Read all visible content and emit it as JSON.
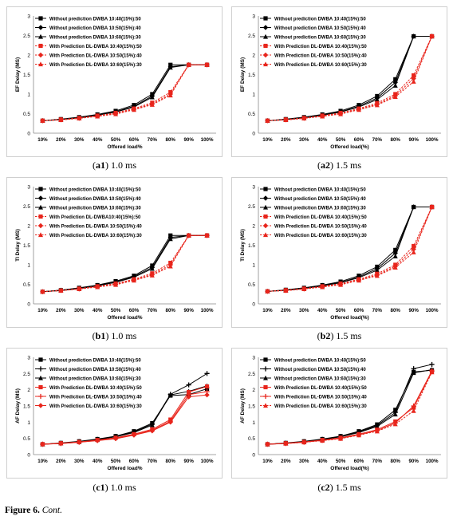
{
  "figure": {
    "label": "Figure 6.",
    "note": "Cont."
  },
  "panels": [
    {
      "id": "a1",
      "letter": "a1",
      "subtitle": "1.0 ms"
    },
    {
      "id": "a2",
      "letter": "a2",
      "subtitle": "1.5 ms"
    },
    {
      "id": "b1",
      "letter": "b1",
      "subtitle": "1.0 ms"
    },
    {
      "id": "b2",
      "letter": "b2",
      "subtitle": "1.5 ms"
    },
    {
      "id": "c1",
      "letter": "c1",
      "subtitle": "1.0 ms"
    },
    {
      "id": "c2",
      "letter": "c2",
      "subtitle": "1.5 ms"
    }
  ],
  "chart_data": [
    {
      "id": "a1",
      "type": "line",
      "xlabel": "Offered load%",
      "ylabel": "EF Delay (MS)",
      "categories": [
        "10%",
        "20%",
        "30%",
        "40%",
        "50%",
        "60%",
        "70%",
        "80%",
        "90%",
        "100%"
      ],
      "ylim": [
        0,
        3
      ],
      "yticks": [
        0,
        0.5,
        1,
        1.5,
        2,
        2.5,
        3
      ],
      "legend_position": "top-left",
      "series": [
        {
          "name": "Without prediction DWBA 10:40(15%):50",
          "color": "#000000",
          "marker": "square",
          "dash": false,
          "values": [
            0.32,
            0.36,
            0.41,
            0.48,
            0.57,
            0.72,
            1.0,
            1.75,
            1.75,
            1.75
          ]
        },
        {
          "name": "Without prediction DWBA 10:50(15%):40",
          "color": "#000000",
          "marker": "diamond",
          "dash": false,
          "values": [
            0.32,
            0.35,
            0.4,
            0.47,
            0.55,
            0.69,
            0.95,
            1.7,
            1.75,
            1.75
          ]
        },
        {
          "name": "Without prediction DWBA 10:60(15%):30",
          "color": "#000000",
          "marker": "triangle",
          "dash": false,
          "values": [
            0.32,
            0.35,
            0.39,
            0.46,
            0.54,
            0.67,
            0.92,
            1.68,
            1.75,
            1.75
          ]
        },
        {
          "name": "With Prediction DL-DWBA 10:40(15%):50",
          "color": "#e8251c",
          "marker": "square",
          "dash": true,
          "values": [
            0.32,
            0.35,
            0.39,
            0.45,
            0.52,
            0.63,
            0.78,
            1.05,
            1.75,
            1.75
          ]
        },
        {
          "name": "With Prediction DL-DWBA 10:50(15%):40",
          "color": "#e8251c",
          "marker": "diamond",
          "dash": true,
          "values": [
            0.32,
            0.34,
            0.38,
            0.44,
            0.5,
            0.61,
            0.75,
            1.0,
            1.75,
            1.75
          ]
        },
        {
          "name": "With Prediction DL-DWBA 10:60(15%):30",
          "color": "#e8251c",
          "marker": "triangle",
          "dash": true,
          "values": [
            0.32,
            0.34,
            0.38,
            0.43,
            0.49,
            0.6,
            0.73,
            0.97,
            1.75,
            1.75
          ]
        }
      ]
    },
    {
      "id": "a2",
      "type": "line",
      "xlabel": "Offered load(%)",
      "ylabel": "EF Delay (MS)",
      "categories": [
        "10%",
        "20%",
        "30%",
        "40%",
        "50%",
        "60%",
        "70%",
        "80%",
        "90%",
        "100%"
      ],
      "ylim": [
        0,
        3
      ],
      "yticks": [
        0,
        0.5,
        1,
        1.5,
        2,
        2.5,
        3
      ],
      "legend_position": "top-left",
      "series": [
        {
          "name": "Without prediction DWBA 10:40(15%):50",
          "color": "#000000",
          "marker": "square",
          "dash": false,
          "values": [
            0.32,
            0.36,
            0.41,
            0.48,
            0.57,
            0.72,
            0.95,
            1.38,
            2.48,
            2.48
          ]
        },
        {
          "name": "Without prediction DWBA 10:50(15%):40",
          "color": "#000000",
          "marker": "diamond",
          "dash": false,
          "values": [
            0.32,
            0.35,
            0.4,
            0.47,
            0.55,
            0.69,
            0.9,
            1.3,
            2.48,
            2.48
          ]
        },
        {
          "name": "Without prediction DWBA 10:60(15%):30",
          "color": "#000000",
          "marker": "triangle",
          "dash": false,
          "values": [
            0.32,
            0.35,
            0.39,
            0.46,
            0.54,
            0.67,
            0.86,
            1.22,
            2.48,
            2.48
          ]
        },
        {
          "name": "With Prediction DL-DWBA 10:40(15%):50",
          "color": "#e8251c",
          "marker": "square",
          "dash": true,
          "values": [
            0.32,
            0.35,
            0.39,
            0.45,
            0.52,
            0.63,
            0.77,
            1.0,
            1.48,
            2.48
          ]
        },
        {
          "name": "With Prediction DL-DWBA 10:50(15%):40",
          "color": "#e8251c",
          "marker": "diamond",
          "dash": true,
          "values": [
            0.32,
            0.34,
            0.38,
            0.44,
            0.5,
            0.61,
            0.74,
            0.96,
            1.4,
            2.48
          ]
        },
        {
          "name": "With Prediction DL-DWBA 10:60(15%):30",
          "color": "#e8251c",
          "marker": "triangle",
          "dash": true,
          "values": [
            0.32,
            0.34,
            0.38,
            0.43,
            0.49,
            0.6,
            0.72,
            0.93,
            1.32,
            2.48
          ]
        }
      ]
    },
    {
      "id": "b1",
      "type": "line",
      "xlabel": "Offered load%",
      "ylabel": "TI Delay (MS)",
      "categories": [
        "10%",
        "20%",
        "30%",
        "40%",
        "50%",
        "60%",
        "70%",
        "80%",
        "90%",
        "100%"
      ],
      "ylim": [
        0,
        3
      ],
      "yticks": [
        0,
        0.5,
        1,
        1.5,
        2,
        2.5,
        3
      ],
      "legend_position": "top-left",
      "series": [
        {
          "name": "Without prediction DWBA 10:40(15%):50",
          "color": "#000000",
          "marker": "square",
          "dash": false,
          "values": [
            0.31,
            0.35,
            0.41,
            0.48,
            0.58,
            0.72,
            0.98,
            1.75,
            1.75,
            1.75
          ]
        },
        {
          "name": "Without prediction DWBA 10:50(15%):40",
          "color": "#000000",
          "marker": "diamond",
          "dash": false,
          "values": [
            0.31,
            0.35,
            0.4,
            0.47,
            0.56,
            0.7,
            0.93,
            1.7,
            1.75,
            1.75
          ]
        },
        {
          "name": "Without prediction DWBA 10:60(15%):30",
          "color": "#000000",
          "marker": "triangle",
          "dash": false,
          "values": [
            0.31,
            0.34,
            0.39,
            0.46,
            0.55,
            0.68,
            0.9,
            1.66,
            1.75,
            1.75
          ]
        },
        {
          "name": "With Prediction DL-DWBA10:40(15%):50",
          "color": "#e8251c",
          "marker": "square",
          "dash": true,
          "values": [
            0.31,
            0.34,
            0.39,
            0.45,
            0.52,
            0.63,
            0.78,
            1.05,
            1.75,
            1.75
          ]
        },
        {
          "name": "With Prediction DL-DWBA 10:50(15%):40",
          "color": "#e8251c",
          "marker": "diamond",
          "dash": true,
          "values": [
            0.31,
            0.34,
            0.38,
            0.44,
            0.5,
            0.61,
            0.75,
            1.0,
            1.75,
            1.75
          ]
        },
        {
          "name": "With Prediction DL-DWBA 10:60(15%):30",
          "color": "#e8251c",
          "marker": "triangle",
          "dash": true,
          "values": [
            0.31,
            0.34,
            0.38,
            0.43,
            0.49,
            0.6,
            0.73,
            0.96,
            1.75,
            1.75
          ]
        }
      ]
    },
    {
      "id": "b2",
      "type": "line",
      "xlabel": "Offered load(%)",
      "ylabel": "TI Delay (MS)",
      "categories": [
        "10%",
        "20%",
        "30%",
        "40%",
        "50%",
        "60%",
        "70%",
        "80%",
        "90%",
        "100%"
      ],
      "ylim": [
        0,
        3
      ],
      "yticks": [
        0,
        0.5,
        1,
        1.5,
        2,
        2.5,
        3
      ],
      "legend_position": "top-left",
      "series": [
        {
          "name": "Without prediction DWBA 10:40(15%):50",
          "color": "#000000",
          "marker": "square",
          "dash": false,
          "values": [
            0.32,
            0.36,
            0.41,
            0.48,
            0.57,
            0.72,
            0.95,
            1.38,
            2.48,
            2.48
          ]
        },
        {
          "name": "Without prediction DWBA 10:50(15%):40",
          "color": "#000000",
          "marker": "diamond",
          "dash": false,
          "values": [
            0.32,
            0.35,
            0.4,
            0.47,
            0.55,
            0.69,
            0.9,
            1.3,
            2.48,
            2.48
          ]
        },
        {
          "name": "Without prediction DWBA 10:60(15%):30",
          "color": "#000000",
          "marker": "triangle",
          "dash": false,
          "values": [
            0.32,
            0.35,
            0.39,
            0.46,
            0.54,
            0.67,
            0.86,
            1.22,
            2.48,
            2.48
          ]
        },
        {
          "name": "With Prediction DL-DWBA 10:40(15%):50",
          "color": "#e8251c",
          "marker": "square",
          "dash": true,
          "values": [
            0.32,
            0.35,
            0.39,
            0.45,
            0.52,
            0.63,
            0.77,
            1.0,
            1.48,
            2.48
          ]
        },
        {
          "name": "With Prediction DL-DWBA 10:50(15%):40",
          "color": "#e8251c",
          "marker": "diamond",
          "dash": true,
          "values": [
            0.32,
            0.34,
            0.38,
            0.44,
            0.5,
            0.61,
            0.74,
            0.96,
            1.4,
            2.48
          ]
        },
        {
          "name": "With Prediction DL-DWBA 10:60(15%):30",
          "color": "#e8251c",
          "marker": "triangle",
          "dash": true,
          "values": [
            0.32,
            0.34,
            0.38,
            0.43,
            0.49,
            0.6,
            0.72,
            0.93,
            1.32,
            2.48
          ]
        }
      ]
    },
    {
      "id": "c1",
      "type": "line",
      "xlabel": "Offered load%",
      "ylabel": "AF Delay (MS)",
      "categories": [
        "10%",
        "20%",
        "30%",
        "40%",
        "50%",
        "60%",
        "70%",
        "80%",
        "90%",
        "100%"
      ],
      "ylim": [
        0,
        3
      ],
      "yticks": [
        0,
        0.5,
        1,
        1.5,
        2,
        2.5,
        3
      ],
      "legend_position": "top-left",
      "series": [
        {
          "name": "Without prediction DWBA 10:40(15%):50",
          "color": "#000000",
          "marker": "square",
          "dash": false,
          "values": [
            0.32,
            0.36,
            0.41,
            0.48,
            0.57,
            0.72,
            0.97,
            1.82,
            1.85,
            2.03
          ]
        },
        {
          "name": "Without prediction DWBA 10:50(15%):40",
          "color": "#000000",
          "marker": "plus",
          "dash": false,
          "values": [
            0.32,
            0.35,
            0.4,
            0.47,
            0.56,
            0.7,
            0.94,
            1.86,
            2.15,
            2.5
          ]
        },
        {
          "name": "Without prediction DWBA 10:60(15%):30",
          "color": "#000000",
          "marker": "triangle",
          "dash": false,
          "values": [
            0.32,
            0.35,
            0.39,
            0.46,
            0.55,
            0.68,
            0.91,
            1.84,
            1.95,
            2.12
          ]
        },
        {
          "name": "With Prediction DL-DWBA 10:40(15%):50",
          "color": "#e8251c",
          "marker": "square",
          "dash": false,
          "values": [
            0.32,
            0.35,
            0.39,
            0.45,
            0.52,
            0.63,
            0.78,
            1.08,
            1.93,
            2.1
          ]
        },
        {
          "name": "With Prediction DL-DWBA 10:50(15%):40",
          "color": "#e8251c",
          "marker": "plus",
          "dash": false,
          "values": [
            0.32,
            0.34,
            0.38,
            0.44,
            0.5,
            0.61,
            0.75,
            1.03,
            1.85,
            1.94
          ]
        },
        {
          "name": "With Prediction DL-DWBA 10:60(15%):30",
          "color": "#e8251c",
          "marker": "diamond",
          "dash": false,
          "values": [
            0.32,
            0.34,
            0.38,
            0.43,
            0.49,
            0.6,
            0.73,
            1.0,
            1.78,
            1.84
          ]
        }
      ]
    },
    {
      "id": "c2",
      "type": "line",
      "xlabel": "Offered load(%)",
      "ylabel": "AF Delay (MS)",
      "categories": [
        "10%",
        "20%",
        "30%",
        "40%",
        "50%",
        "60%",
        "70%",
        "80%",
        "90%",
        "100%"
      ],
      "ylim": [
        0,
        3
      ],
      "yticks": [
        0,
        0.5,
        1,
        1.5,
        2,
        2.5,
        3
      ],
      "legend_position": "top-left",
      "series": [
        {
          "name": "Without prediction DWBA 10:40(15%):50",
          "color": "#000000",
          "marker": "square",
          "dash": false,
          "values": [
            0.32,
            0.36,
            0.41,
            0.48,
            0.57,
            0.72,
            0.93,
            1.38,
            2.55,
            2.6
          ]
        },
        {
          "name": "Without prediction DWBA 10:50(15%):40",
          "color": "#000000",
          "marker": "plus",
          "dash": false,
          "values": [
            0.32,
            0.35,
            0.4,
            0.47,
            0.56,
            0.7,
            0.9,
            1.3,
            2.65,
            2.78
          ]
        },
        {
          "name": "Without prediction DWBA 10:60(15%):30",
          "color": "#000000",
          "marker": "triangle",
          "dash": false,
          "values": [
            0.32,
            0.35,
            0.39,
            0.46,
            0.55,
            0.68,
            0.87,
            1.24,
            2.52,
            2.62
          ]
        },
        {
          "name": "With Prediction DL-DWBA 10:40(15%):50",
          "color": "#e8251c",
          "marker": "square",
          "dash": false,
          "values": [
            0.32,
            0.35,
            0.39,
            0.45,
            0.52,
            0.63,
            0.77,
            1.02,
            1.45,
            2.56
          ]
        },
        {
          "name": "With Prediction DL-DWBA 10:50(15%):40",
          "color": "#e8251c",
          "marker": "plus",
          "dash": false,
          "values": [
            0.32,
            0.34,
            0.38,
            0.44,
            0.5,
            0.61,
            0.74,
            0.98,
            1.5,
            2.58
          ]
        },
        {
          "name": "With Prediction DL-DWBA 10:60(15%):30",
          "color": "#e8251c",
          "marker": "triangle",
          "dash": true,
          "values": [
            0.32,
            0.34,
            0.38,
            0.43,
            0.49,
            0.6,
            0.72,
            0.94,
            1.35,
            2.54
          ]
        }
      ]
    }
  ]
}
